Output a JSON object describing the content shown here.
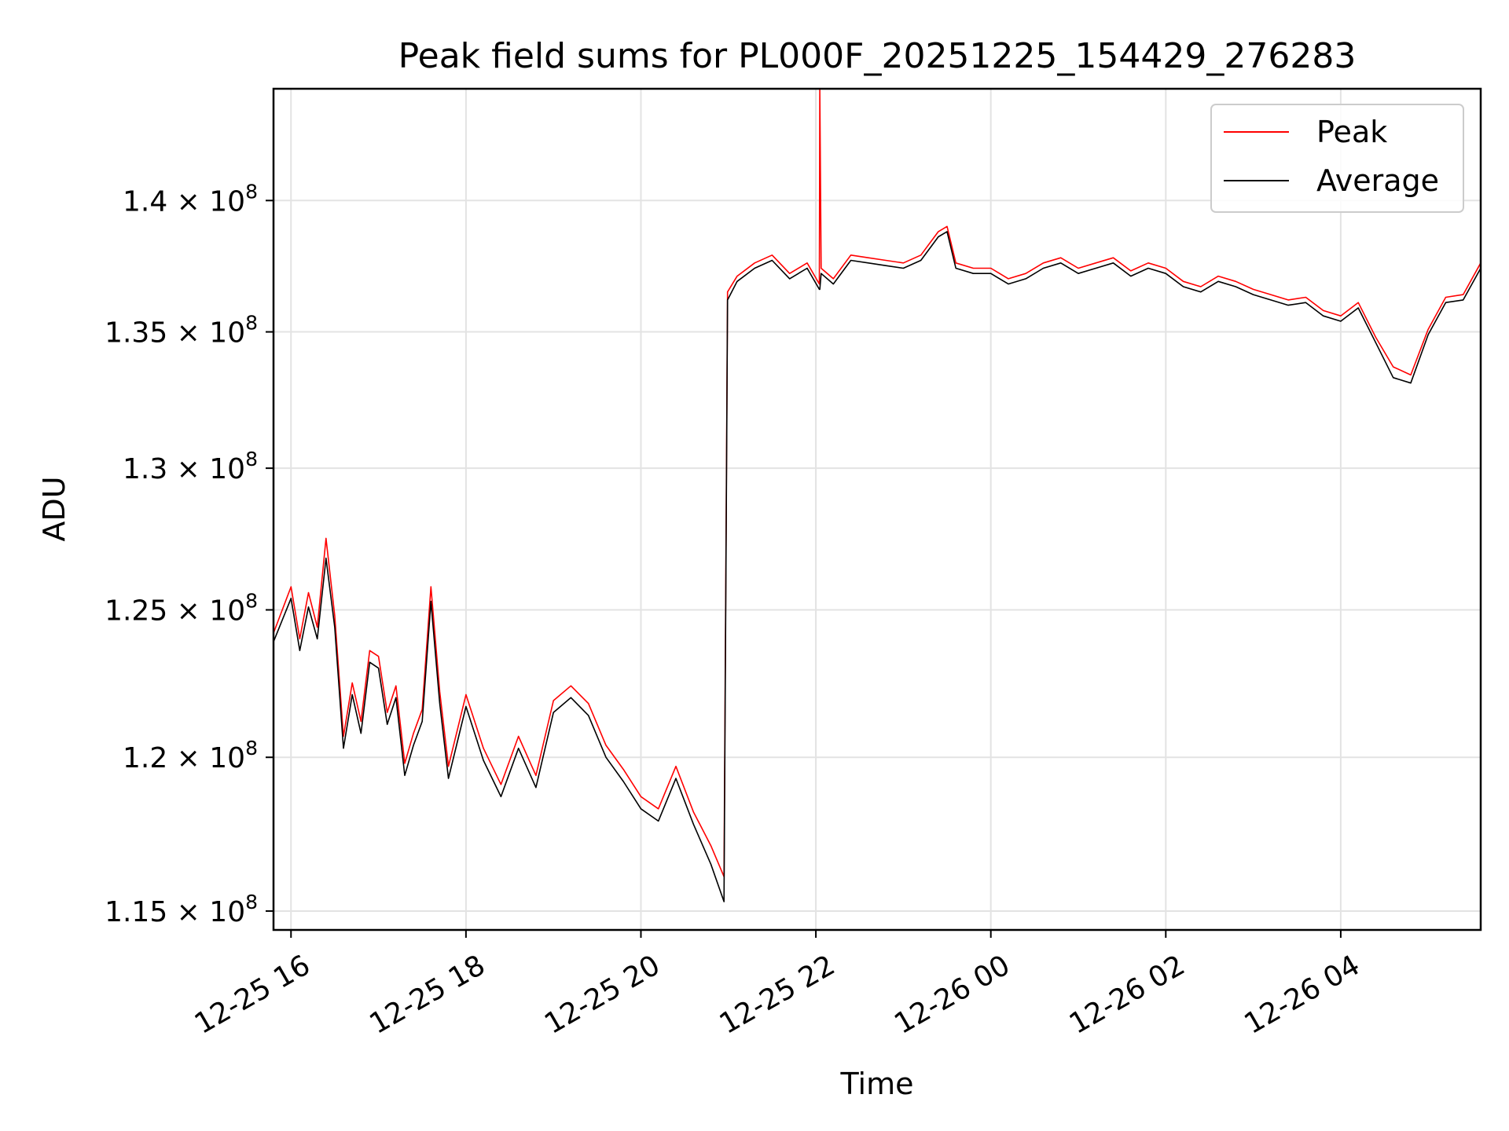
{
  "chart_data": {
    "type": "line",
    "title": "Peak field sums for PL000F_20251225_154429_276283",
    "xlabel": "Time",
    "ylabel": "ADU",
    "x_unit": "hours since 12-25 16:00",
    "xlim": [
      -0.2,
      13.6
    ],
    "ylim": [
      114400000,
      144400000
    ],
    "y_scale": "log",
    "grid": true,
    "legend_position": "top-right",
    "x_ticks": [
      {
        "value": 0,
        "label": "12-25 16"
      },
      {
        "value": 2,
        "label": "12-25 18"
      },
      {
        "value": 4,
        "label": "12-25 20"
      },
      {
        "value": 6,
        "label": "12-25 22"
      },
      {
        "value": 8,
        "label": "12-26 00"
      },
      {
        "value": 10,
        "label": "12-26 02"
      },
      {
        "value": 12,
        "label": "12-26 04"
      }
    ],
    "y_ticks": [
      {
        "value": 115000000,
        "mantissa": "1.15",
        "exp": "8"
      },
      {
        "value": 120000000,
        "mantissa": "1.2",
        "exp": "8"
      },
      {
        "value": 125000000,
        "mantissa": "1.25",
        "exp": "8"
      },
      {
        "value": 130000000,
        "mantissa": "1.3",
        "exp": "8"
      },
      {
        "value": 135000000,
        "mantissa": "1.35",
        "exp": "8"
      },
      {
        "value": 140000000,
        "mantissa": "1.4",
        "exp": "8"
      }
    ],
    "series": [
      {
        "name": "Peak",
        "color": "#ff0000",
        "points": [
          [
            -0.2,
            124200000
          ],
          [
            0.0,
            125800000
          ],
          [
            0.1,
            124000000
          ],
          [
            0.2,
            125600000
          ],
          [
            0.3,
            124400000
          ],
          [
            0.4,
            127500000
          ],
          [
            0.5,
            124800000
          ],
          [
            0.6,
            120700000
          ],
          [
            0.7,
            122500000
          ],
          [
            0.8,
            121200000
          ],
          [
            0.9,
            123600000
          ],
          [
            1.0,
            123400000
          ],
          [
            1.1,
            121500000
          ],
          [
            1.2,
            122400000
          ],
          [
            1.3,
            119800000
          ],
          [
            1.4,
            120800000
          ],
          [
            1.5,
            121600000
          ],
          [
            1.6,
            125800000
          ],
          [
            1.7,
            122200000
          ],
          [
            1.8,
            119700000
          ],
          [
            2.0,
            122100000
          ],
          [
            2.2,
            120300000
          ],
          [
            2.4,
            119100000
          ],
          [
            2.6,
            120700000
          ],
          [
            2.8,
            119400000
          ],
          [
            3.0,
            121900000
          ],
          [
            3.2,
            122400000
          ],
          [
            3.4,
            121800000
          ],
          [
            3.6,
            120400000
          ],
          [
            3.8,
            119600000
          ],
          [
            4.0,
            118700000
          ],
          [
            4.2,
            118300000
          ],
          [
            4.4,
            119700000
          ],
          [
            4.6,
            118200000
          ],
          [
            4.8,
            117100000
          ],
          [
            4.95,
            116100000
          ],
          [
            4.99,
            136500000
          ],
          [
            5.1,
            137100000
          ],
          [
            5.3,
            137600000
          ],
          [
            5.5,
            137900000
          ],
          [
            5.7,
            137200000
          ],
          [
            5.9,
            137600000
          ],
          [
            6.04,
            136800000
          ],
          [
            6.045,
            144400000
          ],
          [
            6.06,
            137400000
          ],
          [
            6.2,
            137000000
          ],
          [
            6.4,
            137900000
          ],
          [
            6.6,
            137800000
          ],
          [
            6.8,
            137700000
          ],
          [
            7.0,
            137600000
          ],
          [
            7.2,
            137900000
          ],
          [
            7.4,
            138800000
          ],
          [
            7.5,
            139000000
          ],
          [
            7.6,
            137600000
          ],
          [
            7.8,
            137400000
          ],
          [
            8.0,
            137400000
          ],
          [
            8.2,
            137000000
          ],
          [
            8.4,
            137200000
          ],
          [
            8.6,
            137600000
          ],
          [
            8.8,
            137800000
          ],
          [
            9.0,
            137400000
          ],
          [
            9.2,
            137600000
          ],
          [
            9.4,
            137800000
          ],
          [
            9.6,
            137300000
          ],
          [
            9.8,
            137600000
          ],
          [
            10.0,
            137400000
          ],
          [
            10.2,
            136900000
          ],
          [
            10.4,
            136700000
          ],
          [
            10.6,
            137100000
          ],
          [
            10.8,
            136900000
          ],
          [
            11.0,
            136600000
          ],
          [
            11.2,
            136400000
          ],
          [
            11.4,
            136200000
          ],
          [
            11.6,
            136300000
          ],
          [
            11.8,
            135800000
          ],
          [
            12.0,
            135600000
          ],
          [
            12.2,
            136100000
          ],
          [
            12.4,
            134800000
          ],
          [
            12.6,
            133700000
          ],
          [
            12.8,
            133400000
          ],
          [
            13.0,
            135100000
          ],
          [
            13.2,
            136300000
          ],
          [
            13.4,
            136400000
          ],
          [
            13.6,
            137600000
          ]
        ]
      },
      {
        "name": "Average",
        "color": "#000000",
        "points": [
          [
            -0.2,
            123900000
          ],
          [
            0.0,
            125400000
          ],
          [
            0.1,
            123600000
          ],
          [
            0.2,
            125100000
          ],
          [
            0.3,
            124000000
          ],
          [
            0.4,
            126800000
          ],
          [
            0.5,
            124400000
          ],
          [
            0.6,
            120300000
          ],
          [
            0.7,
            122100000
          ],
          [
            0.8,
            120800000
          ],
          [
            0.9,
            123200000
          ],
          [
            1.0,
            123000000
          ],
          [
            1.1,
            121100000
          ],
          [
            1.2,
            122000000
          ],
          [
            1.3,
            119400000
          ],
          [
            1.4,
            120400000
          ],
          [
            1.5,
            121200000
          ],
          [
            1.6,
            125300000
          ],
          [
            1.7,
            121800000
          ],
          [
            1.8,
            119300000
          ],
          [
            2.0,
            121700000
          ],
          [
            2.2,
            119900000
          ],
          [
            2.4,
            118700000
          ],
          [
            2.6,
            120300000
          ],
          [
            2.8,
            119000000
          ],
          [
            3.0,
            121500000
          ],
          [
            3.2,
            122000000
          ],
          [
            3.4,
            121400000
          ],
          [
            3.6,
            120000000
          ],
          [
            3.8,
            119200000
          ],
          [
            4.0,
            118300000
          ],
          [
            4.2,
            117900000
          ],
          [
            4.4,
            119300000
          ],
          [
            4.6,
            117800000
          ],
          [
            4.8,
            116500000
          ],
          [
            4.95,
            115300000
          ],
          [
            4.99,
            136200000
          ],
          [
            5.1,
            136900000
          ],
          [
            5.3,
            137400000
          ],
          [
            5.5,
            137700000
          ],
          [
            5.7,
            137000000
          ],
          [
            5.9,
            137400000
          ],
          [
            6.04,
            136600000
          ],
          [
            6.045,
            136600000
          ],
          [
            6.06,
            137200000
          ],
          [
            6.2,
            136800000
          ],
          [
            6.4,
            137700000
          ],
          [
            6.6,
            137600000
          ],
          [
            6.8,
            137500000
          ],
          [
            7.0,
            137400000
          ],
          [
            7.2,
            137700000
          ],
          [
            7.4,
            138600000
          ],
          [
            7.5,
            138800000
          ],
          [
            7.6,
            137400000
          ],
          [
            7.8,
            137200000
          ],
          [
            8.0,
            137200000
          ],
          [
            8.2,
            136800000
          ],
          [
            8.4,
            137000000
          ],
          [
            8.6,
            137400000
          ],
          [
            8.8,
            137600000
          ],
          [
            9.0,
            137200000
          ],
          [
            9.2,
            137400000
          ],
          [
            9.4,
            137600000
          ],
          [
            9.6,
            137100000
          ],
          [
            9.8,
            137400000
          ],
          [
            10.0,
            137200000
          ],
          [
            10.2,
            136700000
          ],
          [
            10.4,
            136500000
          ],
          [
            10.6,
            136900000
          ],
          [
            10.8,
            136700000
          ],
          [
            11.0,
            136400000
          ],
          [
            11.2,
            136200000
          ],
          [
            11.4,
            136000000
          ],
          [
            11.6,
            136100000
          ],
          [
            11.8,
            135600000
          ],
          [
            12.0,
            135400000
          ],
          [
            12.2,
            135900000
          ],
          [
            12.4,
            134600000
          ],
          [
            12.6,
            133300000
          ],
          [
            12.8,
            133100000
          ],
          [
            13.0,
            134900000
          ],
          [
            13.2,
            136100000
          ],
          [
            13.4,
            136200000
          ],
          [
            13.6,
            137400000
          ]
        ]
      }
    ]
  }
}
